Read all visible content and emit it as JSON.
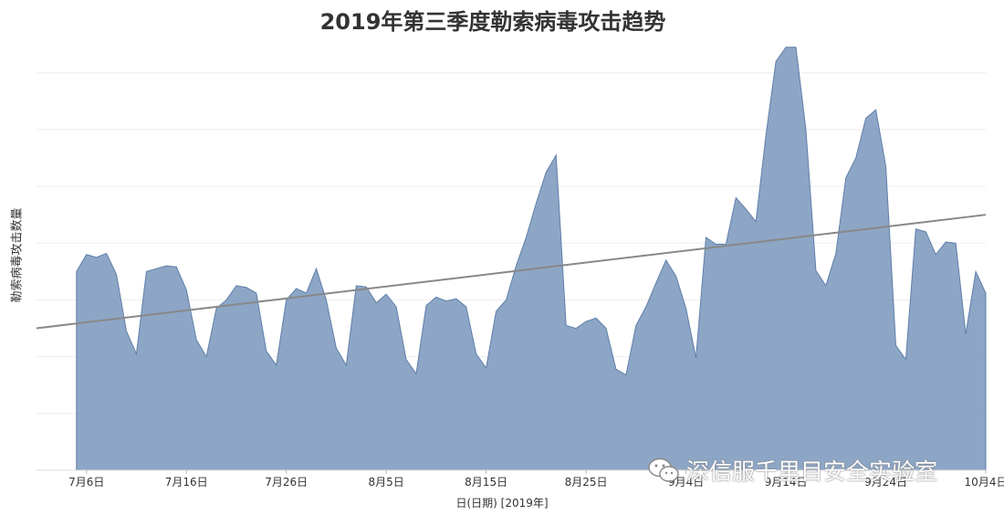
{
  "chart_data": {
    "type": "area",
    "title": "2019年第三季度勒索病毒攻击趋势",
    "xlabel": "日(日期) [2019年]",
    "ylabel": "勒索病毒攻击数量",
    "x_range": [
      "2019-07-01",
      "2019-10-04"
    ],
    "y_range": [
      0,
      7.8
    ],
    "grid": "horizontal",
    "x_ticks": [
      {
        "date": "2019-07-06",
        "label": "7月6日"
      },
      {
        "date": "2019-07-16",
        "label": "7月16日"
      },
      {
        "date": "2019-07-26",
        "label": "7月26日"
      },
      {
        "date": "2019-08-05",
        "label": "8月5日"
      },
      {
        "date": "2019-08-15",
        "label": "8月15日"
      },
      {
        "date": "2019-08-25",
        "label": "8月25日"
      },
      {
        "date": "2019-09-04",
        "label": "9月4日"
      },
      {
        "date": "2019-09-14",
        "label": "9月14日"
      },
      {
        "date": "2019-09-24",
        "label": "9月24日"
      },
      {
        "date": "2019-10-04",
        "label": "10月4日"
      }
    ],
    "series": [
      {
        "start_date": "2019-07-05",
        "values": [
          3.5,
          3.8,
          3.75,
          3.82,
          3.45,
          2.45,
          2.05,
          3.5,
          3.55,
          3.6,
          3.58,
          3.18,
          2.3,
          2.0,
          2.85,
          3.0,
          3.25,
          3.22,
          3.12,
          2.1,
          1.85,
          3.0,
          3.2,
          3.12,
          3.55,
          3.0,
          2.15,
          1.85,
          3.25,
          3.23,
          2.95,
          3.1,
          2.88,
          1.95,
          1.7,
          2.9,
          3.05,
          2.98,
          3.02,
          2.88,
          2.05,
          1.8,
          2.8,
          3.0,
          3.6,
          4.1,
          4.7,
          5.25,
          5.55,
          2.55,
          2.5,
          2.62,
          2.68,
          2.5,
          1.78,
          1.68,
          2.55,
          2.88,
          3.3,
          3.7,
          3.42,
          2.85,
          1.98,
          4.1,
          3.98,
          3.98,
          4.8,
          4.6,
          4.38,
          5.9,
          7.2,
          7.45,
          7.45,
          6.0,
          3.52,
          3.25,
          3.82,
          5.15,
          5.5,
          6.2,
          6.35,
          5.35,
          2.2,
          1.95,
          4.25,
          4.2,
          3.8,
          4.02,
          4.0,
          2.4,
          3.5,
          3.12
        ],
        "color": "#7090b8"
      }
    ],
    "trend_line": {
      "start": [
        "2019-07-01",
        2.5
      ],
      "end": [
        "2019-10-04",
        4.5
      ],
      "color": "#888888"
    }
  },
  "watermark": {
    "text": "深信服千里目安全实验室",
    "icon": "wechat-icon"
  }
}
